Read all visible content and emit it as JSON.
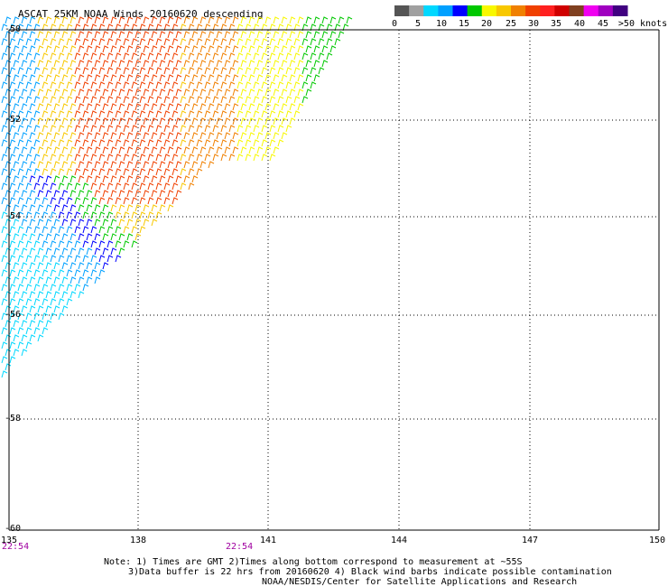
{
  "title": "ASCAT 25KM NOAA Winds 20160620 descending",
  "colorbar": {
    "colors": [
      "#555555",
      "#a0a0a0",
      "#00d8ff",
      "#00a0ff",
      "#0000ff",
      "#00c800",
      "#f8f800",
      "#f8c800",
      "#f08000",
      "#f04000",
      "#ff2020",
      "#d00000",
      "#804020",
      "#f000f0",
      "#a000c0",
      "#400080"
    ],
    "labels": [
      "0",
      "5",
      "10",
      "15",
      "20",
      "25",
      "30",
      "35",
      "40",
      "45",
      ">50 knots"
    ]
  },
  "axes": {
    "lat_labels": [
      "-50",
      "-52",
      "-54",
      "-56",
      "-58",
      "-60"
    ],
    "lon_labels": [
      "135",
      "138",
      "141",
      "144",
      "147",
      "150"
    ]
  },
  "times": [
    "22:54",
    "22:54"
  ],
  "notes": [
    "Note: 1) Times are GMT 2)Times along bottom correspond to measurement at ~55S",
    "3)Data buffer is 22 hrs from 20160620 4) Black wind barbs indicate possible contamination",
    "NOAA/NESDIS/Center for Satellite Applications and Research"
  ]
}
